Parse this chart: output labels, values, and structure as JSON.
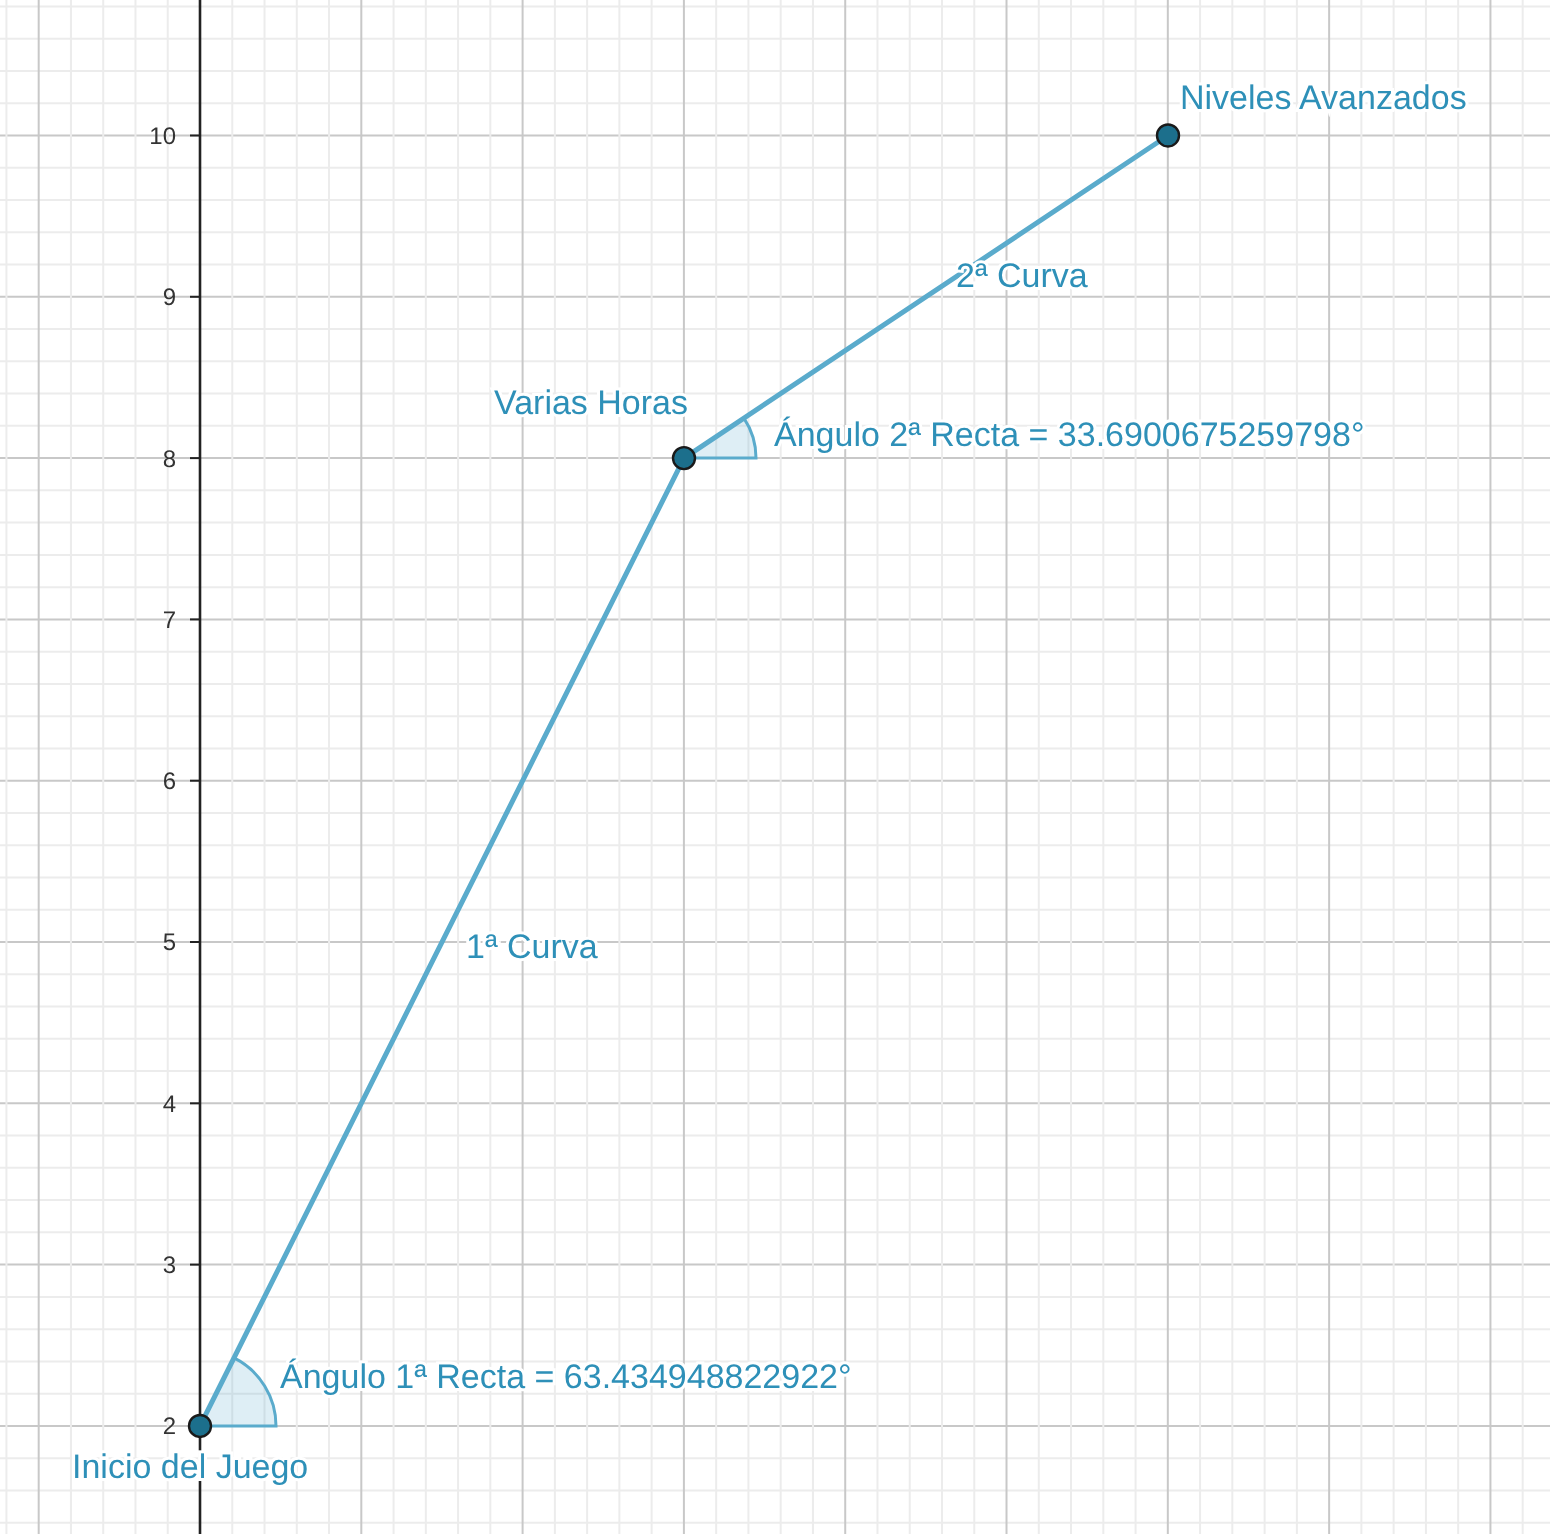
{
  "chart_data": {
    "type": "line",
    "categories": [
      null,
      null,
      null
    ],
    "series": [
      {
        "color": "#5aabcc",
        "values": [
          2,
          8,
          10
        ]
      }
    ],
    "marker": "circle",
    "grid": true,
    "tick_labels": "y",
    "ylim": [
      1.33,
      10.84
    ],
    "yticks": [
      2,
      3,
      4,
      5,
      6,
      7,
      8,
      9,
      10
    ],
    "annotations": [
      "Inicio del Juego",
      "Varias Horas",
      "Niveles Avanzados",
      "1ª Curva",
      "2ª Curva",
      "Ángulo 1ª Recta = 63.434948822922°",
      "Ángulo 2ª Recta = 33.6900675259798°"
    ]
  }
}
